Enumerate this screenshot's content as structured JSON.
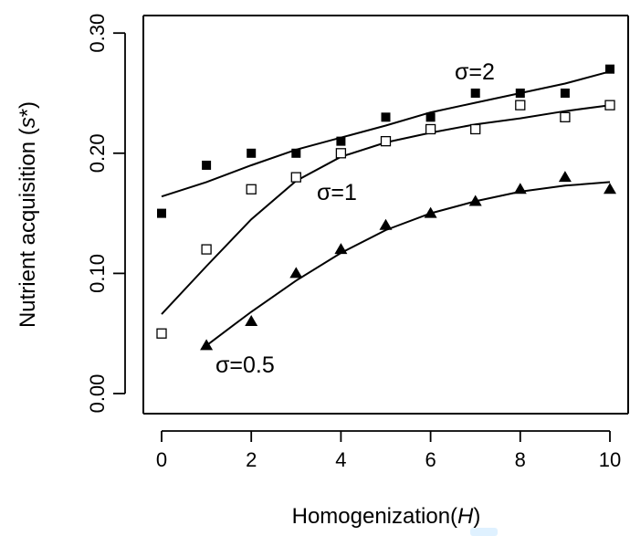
{
  "chart_data": {
    "type": "scatter",
    "xlabel": "Homogenization(",
    "xlabel_var": "H",
    "xlabel_end": ")",
    "ylabel": "Nutrient acquisition (",
    "ylabel_var": "s",
    "ylabel_end": "*)",
    "xlim": [
      -0.3,
      10.4
    ],
    "ylim": [
      -0.003,
      0.302
    ],
    "xticks": [
      "0",
      "2",
      "4",
      "6",
      "8",
      "10"
    ],
    "yticks": [
      "0.00",
      "0.10",
      "0.20",
      "0.30"
    ],
    "grid": false,
    "legend": "none",
    "series": [
      {
        "name": "σ=2",
        "marker": "filled-square",
        "x": [
          0,
          1,
          2,
          3,
          4,
          5,
          6,
          7,
          8,
          9,
          10
        ],
        "values": [
          0.15,
          0.19,
          0.2,
          0.2,
          0.21,
          0.23,
          0.23,
          0.25,
          0.25,
          0.25,
          0.27
        ],
        "fit": [
          [
            0,
            0.164
          ],
          [
            1,
            0.176
          ],
          [
            2,
            0.19
          ],
          [
            3,
            0.203
          ],
          [
            4,
            0.213
          ],
          [
            5,
            0.223
          ],
          [
            6,
            0.234
          ],
          [
            7,
            0.242
          ],
          [
            8,
            0.25
          ],
          [
            9,
            0.258
          ],
          [
            10,
            0.268
          ]
        ]
      },
      {
        "name": "σ=1",
        "marker": "open-square",
        "x": [
          0,
          1,
          2,
          3,
          4,
          5,
          6,
          7,
          8,
          9,
          10
        ],
        "values": [
          0.05,
          0.12,
          0.17,
          0.18,
          0.2,
          0.21,
          0.22,
          0.22,
          0.24,
          0.23,
          0.24
        ],
        "fit": [
          [
            0,
            0.066
          ],
          [
            1,
            0.106
          ],
          [
            2,
            0.145
          ],
          [
            3,
            0.177
          ],
          [
            4,
            0.197
          ],
          [
            5,
            0.209
          ],
          [
            6,
            0.217
          ],
          [
            7,
            0.224
          ],
          [
            8,
            0.229
          ],
          [
            9,
            0.235
          ],
          [
            10,
            0.24
          ]
        ]
      },
      {
        "name": "σ=0.5",
        "marker": "filled-triangle",
        "x": [
          1,
          2,
          3,
          4,
          5,
          6,
          7,
          8,
          9,
          10
        ],
        "values": [
          0.04,
          0.06,
          0.1,
          0.12,
          0.14,
          0.15,
          0.16,
          0.17,
          0.18,
          0.17
        ],
        "fit": [
          [
            1,
            0.04
          ],
          [
            2,
            0.068
          ],
          [
            3,
            0.094
          ],
          [
            4,
            0.117
          ],
          [
            5,
            0.136
          ],
          [
            6,
            0.15
          ],
          [
            7,
            0.16
          ],
          [
            8,
            0.168
          ],
          [
            9,
            0.173
          ],
          [
            10,
            0.176
          ]
        ]
      }
    ]
  }
}
